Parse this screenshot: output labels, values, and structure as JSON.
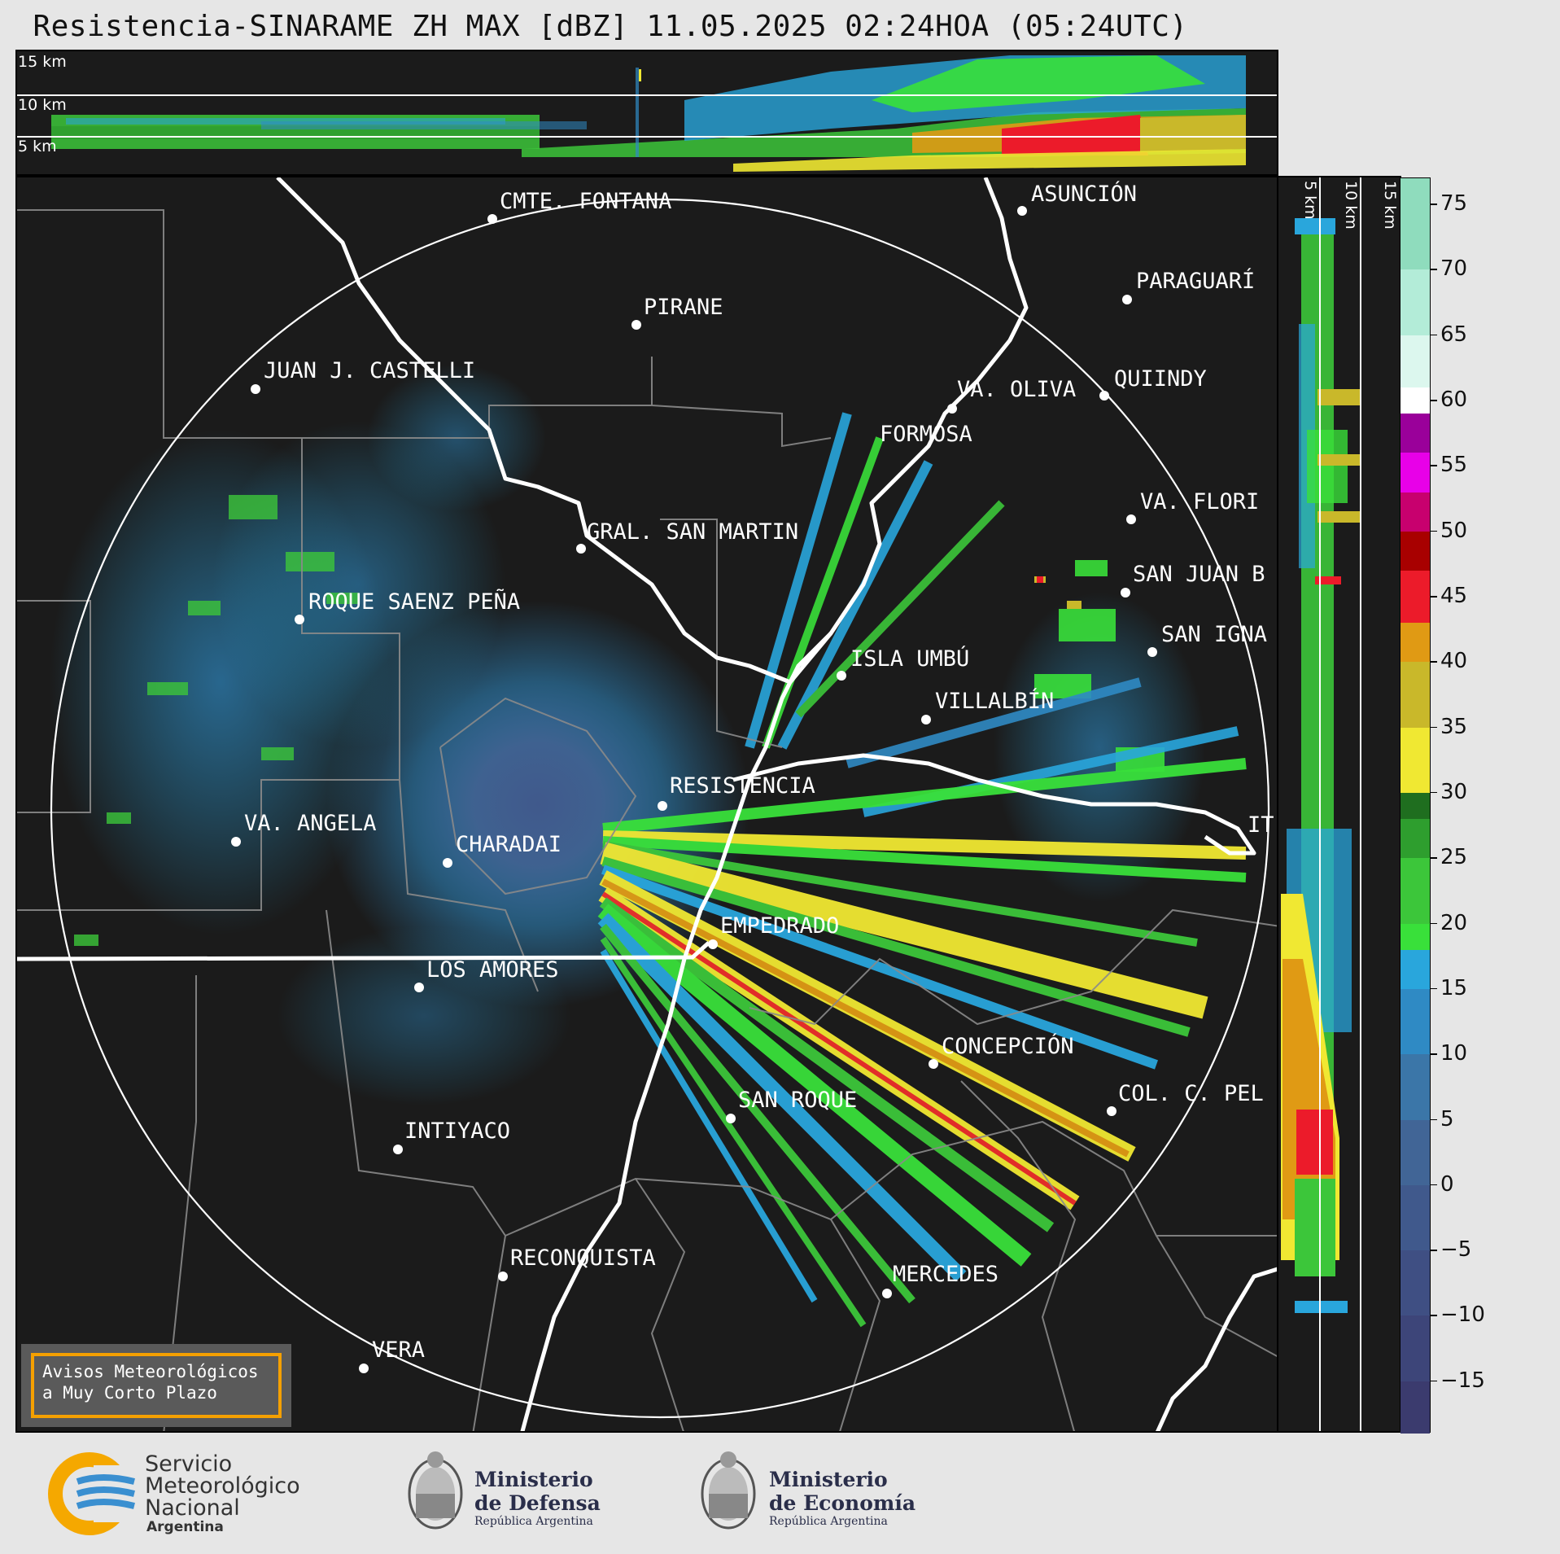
{
  "title": "Resistencia-SINARAME ZH MAX [dBZ] 11.05.2025 02:24HOA (05:24UTC)",
  "top_panel": {
    "height_labels": [
      "15 km",
      "10 km",
      "5 km"
    ]
  },
  "side_panel": {
    "height_labels": [
      "5 km",
      "10 km",
      "15 km"
    ]
  },
  "colorbar": {
    "unit": "dBZ",
    "min": -19,
    "max": 77,
    "ticks": [
      "75",
      "70",
      "65",
      "60",
      "55",
      "50",
      "45",
      "40",
      "35",
      "30",
      "25",
      "20",
      "15",
      "10",
      "5",
      "0",
      "−5",
      "−10",
      "−15"
    ],
    "tick_values": [
      75,
      70,
      65,
      60,
      55,
      50,
      45,
      40,
      35,
      30,
      25,
      20,
      15,
      10,
      5,
      0,
      -5,
      -10,
      -15
    ],
    "colors": [
      {
        "from": -19,
        "to": -15,
        "color": "#3b3b6e"
      },
      {
        "from": -15,
        "to": -10,
        "color": "#3d4579"
      },
      {
        "from": -10,
        "to": -5,
        "color": "#3f4f83"
      },
      {
        "from": -5,
        "to": 0,
        "color": "#40598c"
      },
      {
        "from": 0,
        "to": 5,
        "color": "#416596"
      },
      {
        "from": 5,
        "to": 10,
        "color": "#3b76a8"
      },
      {
        "from": 10,
        "to": 15,
        "color": "#2f8ac4"
      },
      {
        "from": 15,
        "to": 18,
        "color": "#29a6dc"
      },
      {
        "from": 18,
        "to": 20,
        "color": "#39e03a"
      },
      {
        "from": 20,
        "to": 25,
        "color": "#3cc63a"
      },
      {
        "from": 25,
        "to": 28,
        "color": "#2e9e2e"
      },
      {
        "from": 28,
        "to": 30,
        "color": "#1f6e1f"
      },
      {
        "from": 30,
        "to": 35,
        "color": "#f0e832"
      },
      {
        "from": 35,
        "to": 40,
        "color": "#c9b82a"
      },
      {
        "from": 40,
        "to": 43,
        "color": "#e09a14"
      },
      {
        "from": 43,
        "to": 47,
        "color": "#ec1b2a"
      },
      {
        "from": 47,
        "to": 50,
        "color": "#a80000"
      },
      {
        "from": 50,
        "to": 53,
        "color": "#c8006e"
      },
      {
        "from": 53,
        "to": 56,
        "color": "#e800e8"
      },
      {
        "from": 56,
        "to": 59,
        "color": "#9a009a"
      },
      {
        "from": 59,
        "to": 61,
        "color": "#ffffff"
      },
      {
        "from": 61,
        "to": 65,
        "color": "#dcf7ee"
      },
      {
        "from": 65,
        "to": 70,
        "color": "#b3ecd8"
      },
      {
        "from": 70,
        "to": 77,
        "color": "#8fdcbd"
      }
    ]
  },
  "cities": [
    {
      "name": "CMTE. FONTANA"
    },
    {
      "name": "ASUNCIÓN"
    },
    {
      "name": "PIRANE"
    },
    {
      "name": "PARAGUARÍ"
    },
    {
      "name": "JUAN J. CASTELLI"
    },
    {
      "name": "VA. OLIVA"
    },
    {
      "name": "QUIINDY"
    },
    {
      "name": "FORMOSA"
    },
    {
      "name": "VA. FLORI"
    },
    {
      "name": "GRAL. SAN MARTIN"
    },
    {
      "name": "SAN JUAN B"
    },
    {
      "name": "ROQUE SAENZ PEÑA"
    },
    {
      "name": "SAN IGNA"
    },
    {
      "name": "ISLA UMBÚ"
    },
    {
      "name": "VILLALBÍN"
    },
    {
      "name": "RESISTENCIA"
    },
    {
      "name": "VA. ANGELA"
    },
    {
      "name": "CHARADAI"
    },
    {
      "name": "IT"
    },
    {
      "name": "EMPEDRADO"
    },
    {
      "name": "LOS AMORES"
    },
    {
      "name": "CONCEPCIÓN"
    },
    {
      "name": "SAN ROQUE"
    },
    {
      "name": "COL. C. PEL"
    },
    {
      "name": "INTIYACO"
    },
    {
      "name": "RECONQUISTA"
    },
    {
      "name": "MERCEDES"
    },
    {
      "name": "VERA"
    }
  ],
  "alert_box": {
    "line1": "Avisos Meteorológicos",
    "line2": "a Muy Corto Plazo"
  },
  "footer": {
    "smn": {
      "line1": "Servicio",
      "line2": "Meteorológico",
      "line3": "Nacional",
      "line4": "Argentina"
    },
    "defensa": {
      "line1": "Ministerio",
      "line2": "de Defensa",
      "line3": "República Argentina"
    },
    "economia": {
      "line1": "Ministerio",
      "line2": "de Economía",
      "line3": "República Argentina"
    }
  }
}
